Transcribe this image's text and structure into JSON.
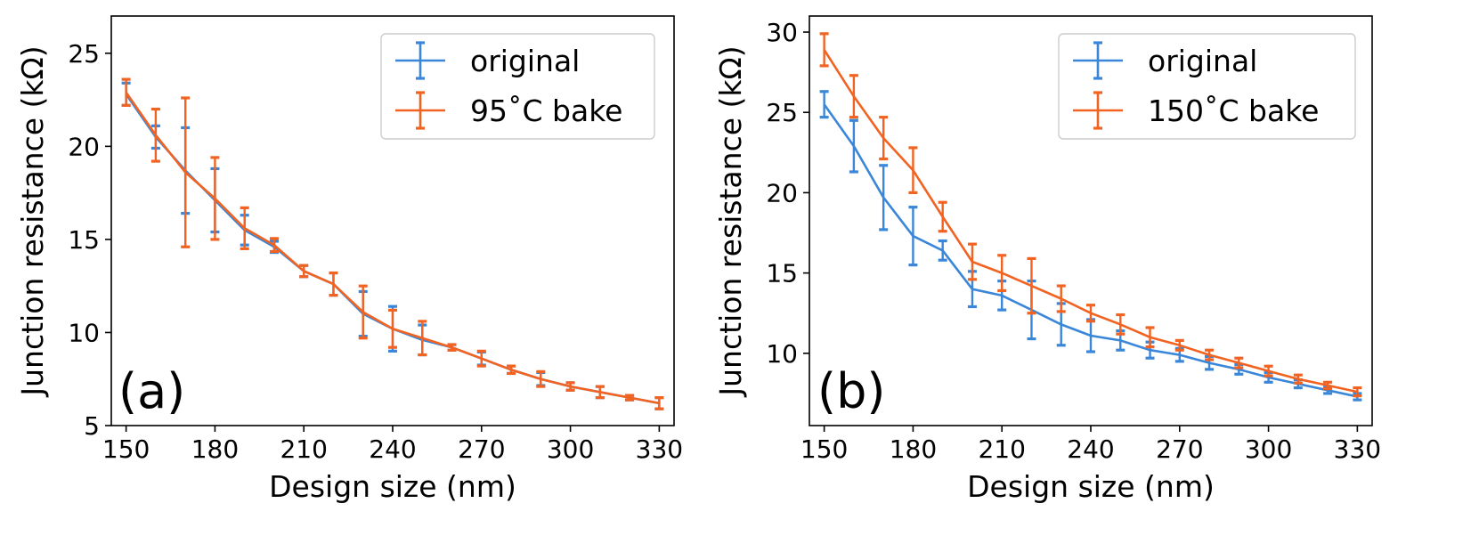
{
  "chart_data": [
    {
      "panel": "(a)",
      "type": "line",
      "xlabel": "Design size (nm)",
      "ylabel": "Junction resistance (kΩ)",
      "xlim": [
        145,
        335
      ],
      "ylim": [
        5,
        27
      ],
      "xticks": [
        150,
        180,
        210,
        240,
        270,
        300,
        330
      ],
      "yticks": [
        5,
        10,
        15,
        20,
        25
      ],
      "legend_position": "top-right",
      "x": [
        150,
        160,
        170,
        180,
        190,
        200,
        210,
        220,
        230,
        240,
        250,
        260,
        270,
        280,
        290,
        300,
        310,
        320,
        330
      ],
      "series": [
        {
          "name": "original",
          "color": "#3a86d9",
          "values": [
            22.8,
            20.5,
            18.7,
            17.1,
            15.5,
            14.6,
            13.3,
            12.6,
            11.0,
            10.2,
            9.6,
            9.2,
            8.6,
            8.0,
            7.5,
            7.1,
            6.8,
            6.5,
            6.2
          ],
          "errors": [
            0.6,
            0.6,
            2.3,
            1.7,
            0.8,
            0.3,
            0.3,
            0.6,
            1.2,
            1.2,
            0.8,
            0.15,
            0.35,
            0.2,
            0.35,
            0.2,
            0.3,
            0.12,
            0.3
          ]
        },
        {
          "name": "95˚C bake",
          "color": "#f26322",
          "values": [
            22.9,
            20.6,
            18.6,
            17.2,
            15.6,
            14.7,
            13.3,
            12.6,
            11.1,
            10.2,
            9.7,
            9.2,
            8.6,
            8.0,
            7.5,
            7.1,
            6.8,
            6.5,
            6.2
          ],
          "errors": [
            0.7,
            1.4,
            4.0,
            2.2,
            1.1,
            0.35,
            0.3,
            0.6,
            1.4,
            1.0,
            0.9,
            0.15,
            0.4,
            0.2,
            0.4,
            0.2,
            0.3,
            0.12,
            0.3
          ]
        }
      ]
    },
    {
      "panel": "(b)",
      "type": "line",
      "xlabel": "Design size (nm)",
      "ylabel": "Junction resistance (kΩ)",
      "xlim": [
        145,
        335
      ],
      "ylim": [
        5.5,
        31
      ],
      "xticks": [
        150,
        180,
        210,
        240,
        270,
        300,
        330
      ],
      "yticks": [
        10,
        15,
        20,
        25,
        30
      ],
      "legend_position": "top-right",
      "x": [
        150,
        160,
        170,
        180,
        190,
        200,
        210,
        220,
        230,
        240,
        250,
        260,
        270,
        280,
        290,
        300,
        310,
        320,
        330
      ],
      "series": [
        {
          "name": "original",
          "color": "#3a86d9",
          "values": [
            25.5,
            22.9,
            19.7,
            17.3,
            16.4,
            14.0,
            13.6,
            12.7,
            11.8,
            11.1,
            10.8,
            10.2,
            9.9,
            9.4,
            9.0,
            8.5,
            8.1,
            7.7,
            7.3
          ],
          "errors": [
            0.8,
            1.6,
            2.0,
            1.8,
            0.6,
            1.1,
            0.9,
            1.8,
            1.3,
            1.0,
            0.6,
            0.5,
            0.4,
            0.4,
            0.3,
            0.3,
            0.25,
            0.2,
            0.2
          ]
        },
        {
          "name": "150˚C bake",
          "color": "#f26322",
          "values": [
            28.9,
            26.0,
            23.4,
            21.4,
            18.5,
            15.7,
            15.0,
            14.2,
            13.4,
            12.5,
            11.8,
            11.0,
            10.5,
            9.9,
            9.4,
            8.9,
            8.4,
            8.0,
            7.6
          ],
          "errors": [
            1.0,
            1.3,
            1.3,
            1.4,
            0.9,
            1.1,
            1.1,
            1.7,
            0.8,
            0.5,
            0.6,
            0.6,
            0.3,
            0.3,
            0.3,
            0.3,
            0.25,
            0.2,
            0.25
          ]
        }
      ]
    }
  ]
}
